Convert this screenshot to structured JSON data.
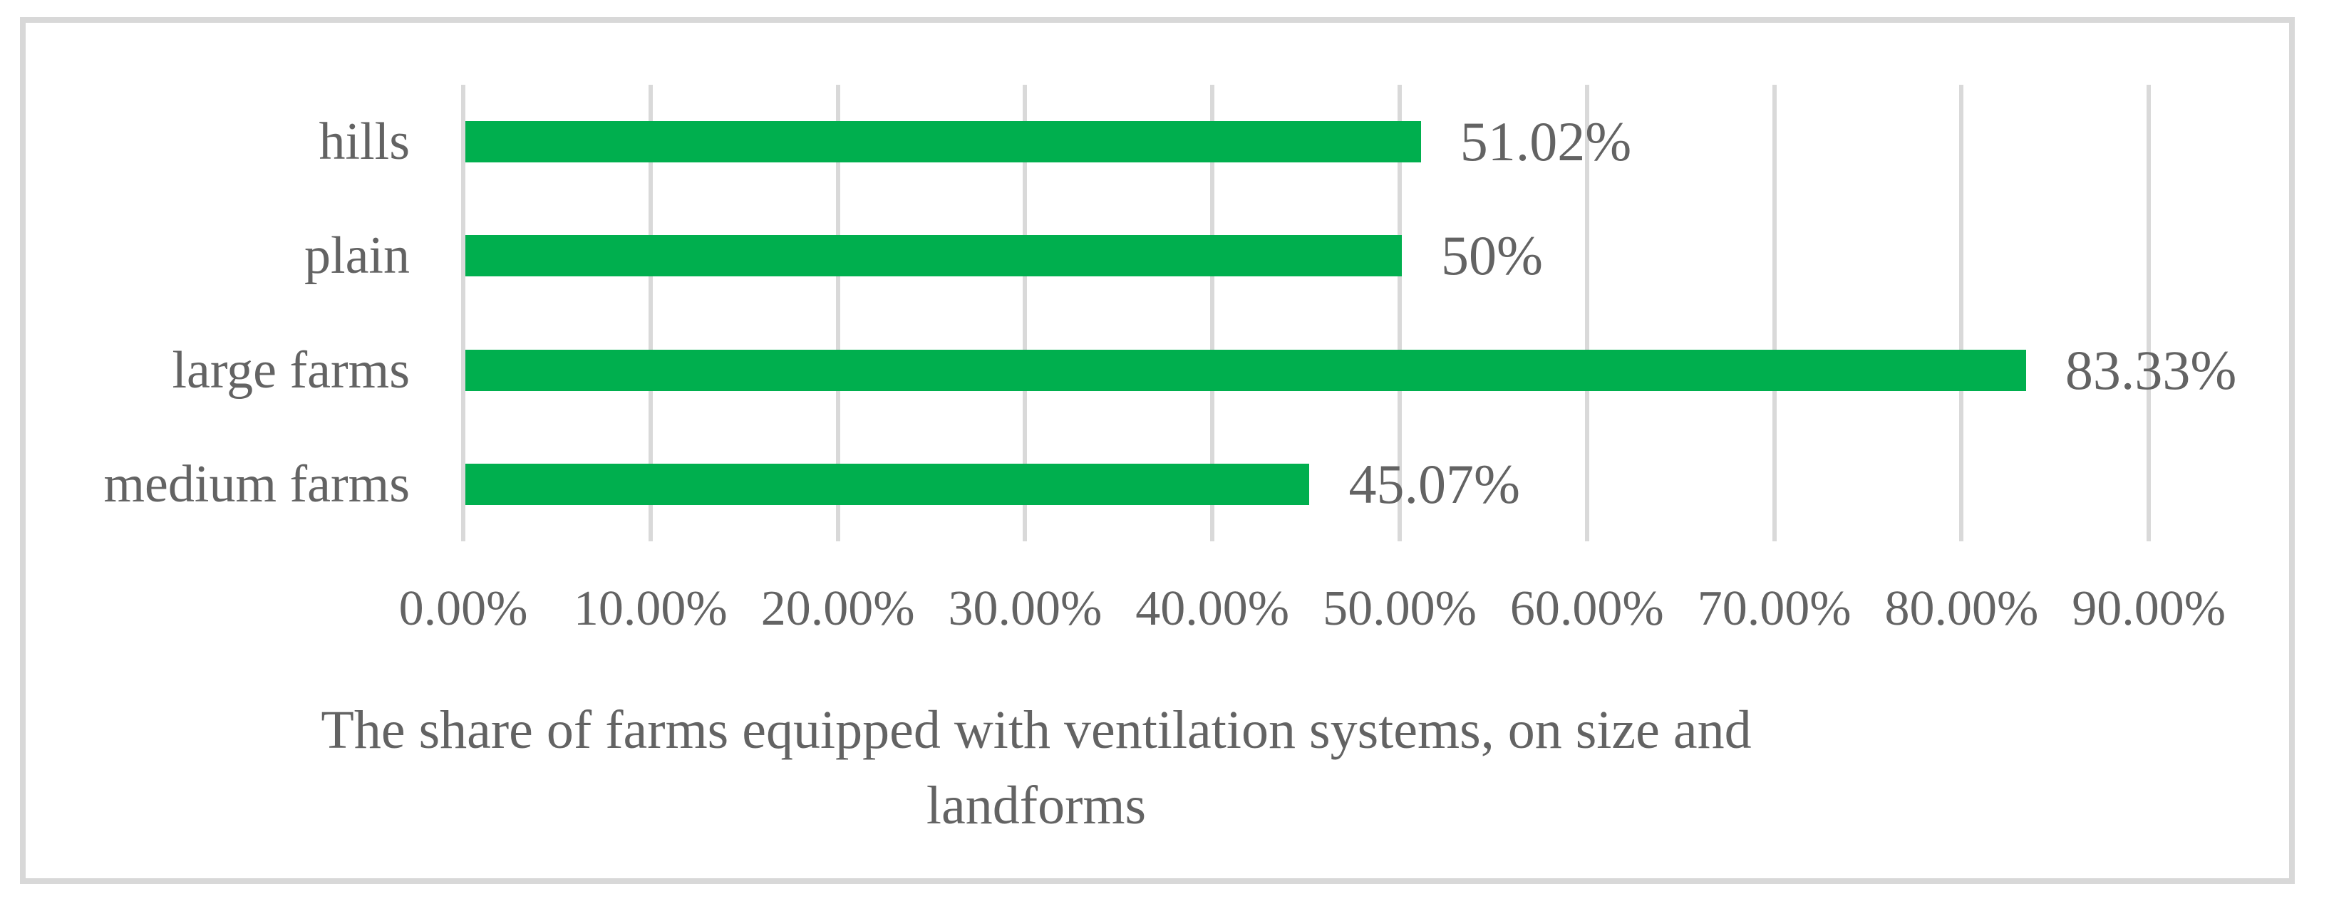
{
  "chart_data": {
    "type": "bar",
    "orientation": "horizontal",
    "title": "The share of farms equipped with ventilation systems, on size and landforms",
    "title_lines": [
      "The share of farms equipped with ventilation systems, on size and",
      "landforms"
    ],
    "categories": [
      "hills",
      "plain",
      "large farms",
      "medium farms"
    ],
    "values": [
      51.02,
      50,
      83.33,
      45.07
    ],
    "value_labels": [
      "51.02%",
      "50%",
      "83.33%",
      "45.07%"
    ],
    "x_ticks": [
      "0.00%",
      "10.00%",
      "20.00%",
      "30.00%",
      "40.00%",
      "50.00%",
      "60.00%",
      "70.00%",
      "80.00%",
      "90.00%"
    ],
    "xlim": [
      0,
      90
    ],
    "grid": "vertical-gridlines-on",
    "legend": "none",
    "colors": {
      "bar": "#00AF4E",
      "gridline": "#d9d9d9",
      "frame": "#d8d8d8",
      "text": "#636363",
      "background": "#ffffff"
    }
  }
}
